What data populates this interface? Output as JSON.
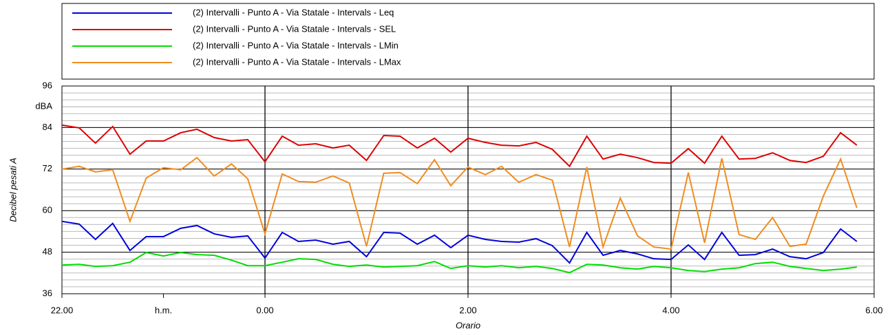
{
  "chart_data": {
    "type": "line",
    "x_label": "Orario",
    "y_label": "Decibel pesati A",
    "xlim": [
      22,
      30
    ],
    "xticks": [
      {
        "value": 22,
        "label": "22.00"
      },
      {
        "value": 23,
        "label": "h.m."
      },
      {
        "value": 24,
        "label": "0.00"
      },
      {
        "value": 26,
        "label": "2.00"
      },
      {
        "value": 28,
        "label": "4.00"
      },
      {
        "value": 30,
        "label": "6.00"
      }
    ],
    "ylim": [
      36,
      96
    ],
    "yticks": [
      36,
      48,
      60,
      72,
      84,
      {
        "value": 90,
        "label": "dBA"
      },
      96
    ],
    "yminor": 2,
    "grid": true,
    "x": [
      22,
      22.17,
      22.33,
      22.5,
      22.67,
      22.83,
      23,
      23.17,
      23.33,
      23.5,
      23.67,
      23.83,
      24,
      24.17,
      24.33,
      24.5,
      24.67,
      24.83,
      25,
      25.17,
      25.33,
      25.5,
      25.67,
      25.83,
      26,
      26.17,
      26.33,
      26.5,
      26.67,
      26.83,
      27,
      27.17,
      27.33,
      27.5,
      27.67,
      27.83,
      28,
      28.17,
      28.33,
      28.5,
      28.67,
      28.83,
      29,
      29.17,
      29.33,
      29.5,
      29.67,
      29.83
    ],
    "series": [
      {
        "name": "(2) Intervalli - Punto A - Via Statale - Intervals - Leq",
        "color": "#0000dd",
        "values": [
          56.9,
          56.1,
          51.7,
          56.3,
          48.5,
          52.5,
          52.5,
          54.9,
          55.7,
          53.3,
          52.3,
          52.7,
          46.3,
          53.7,
          51.1,
          51.5,
          50.3,
          51.1,
          46.7,
          53.7,
          53.5,
          50.3,
          52.9,
          49.3,
          52.9,
          51.7,
          51.1,
          50.9,
          51.9,
          49.9,
          44.9,
          53.7,
          47.1,
          48.5,
          47.5,
          46.1,
          45.9,
          50.1,
          45.9,
          53.7,
          47.1,
          47.3,
          48.9,
          46.7,
          46.1,
          47.9,
          54.7,
          51.1
        ]
      },
      {
        "name": "(2) Intervalli - Punto A - Via Statale - Intervals - SEL",
        "color": "#dd0000",
        "values": [
          84.7,
          83.9,
          79.5,
          84.3,
          76.3,
          80.1,
          80.1,
          82.5,
          83.5,
          81.1,
          80.1,
          80.5,
          74.1,
          81.5,
          78.9,
          79.3,
          78.1,
          78.9,
          74.5,
          81.7,
          81.5,
          78.1,
          80.9,
          76.9,
          80.9,
          79.7,
          78.9,
          78.7,
          79.7,
          77.7,
          72.8,
          81.5,
          74.9,
          76.3,
          75.3,
          73.9,
          73.7,
          77.9,
          73.7,
          81.5,
          74.9,
          75.1,
          76.7,
          74.5,
          73.9,
          75.7,
          82.5,
          78.9
        ]
      },
      {
        "name": "(2) Intervalli - Punto A - Via Statale - Intervals - LMin",
        "color": "#00dd00",
        "values": [
          44.3,
          44.5,
          43.9,
          44.1,
          45.1,
          47.9,
          46.9,
          47.9,
          47.3,
          47.1,
          45.7,
          44.1,
          44.1,
          45.1,
          46.1,
          45.9,
          44.5,
          43.9,
          44.3,
          43.7,
          43.9,
          44.1,
          45.3,
          43.3,
          44.1,
          43.7,
          44.1,
          43.5,
          43.9,
          43.3,
          42.1,
          44.5,
          44.3,
          43.5,
          43.1,
          43.9,
          43.5,
          42.7,
          42.4,
          43.1,
          43.5,
          44.7,
          45.1,
          43.9,
          43.3,
          42.7,
          43.1,
          43.7
        ]
      },
      {
        "name": "(2) Intervalli - Punto A - Via Statale - Intervals - LMax",
        "color": "#f08c1e",
        "values": [
          72,
          72.8,
          71.2,
          71.8,
          56.9,
          69.4,
          72.4,
          71.8,
          75.3,
          70,
          73.5,
          69.2,
          53.3,
          70.6,
          68.4,
          68.2,
          70,
          68,
          49.7,
          70.8,
          71,
          67.8,
          74.7,
          67.2,
          72.6,
          70.4,
          72.8,
          68.2,
          70.4,
          68.8,
          49.5,
          72.6,
          49.5,
          63.6,
          52.7,
          49.5,
          48.9,
          71,
          50.7,
          75.1,
          53.1,
          51.7,
          58,
          49.7,
          50.3,
          64.2,
          74.9,
          60.8
        ]
      }
    ]
  }
}
